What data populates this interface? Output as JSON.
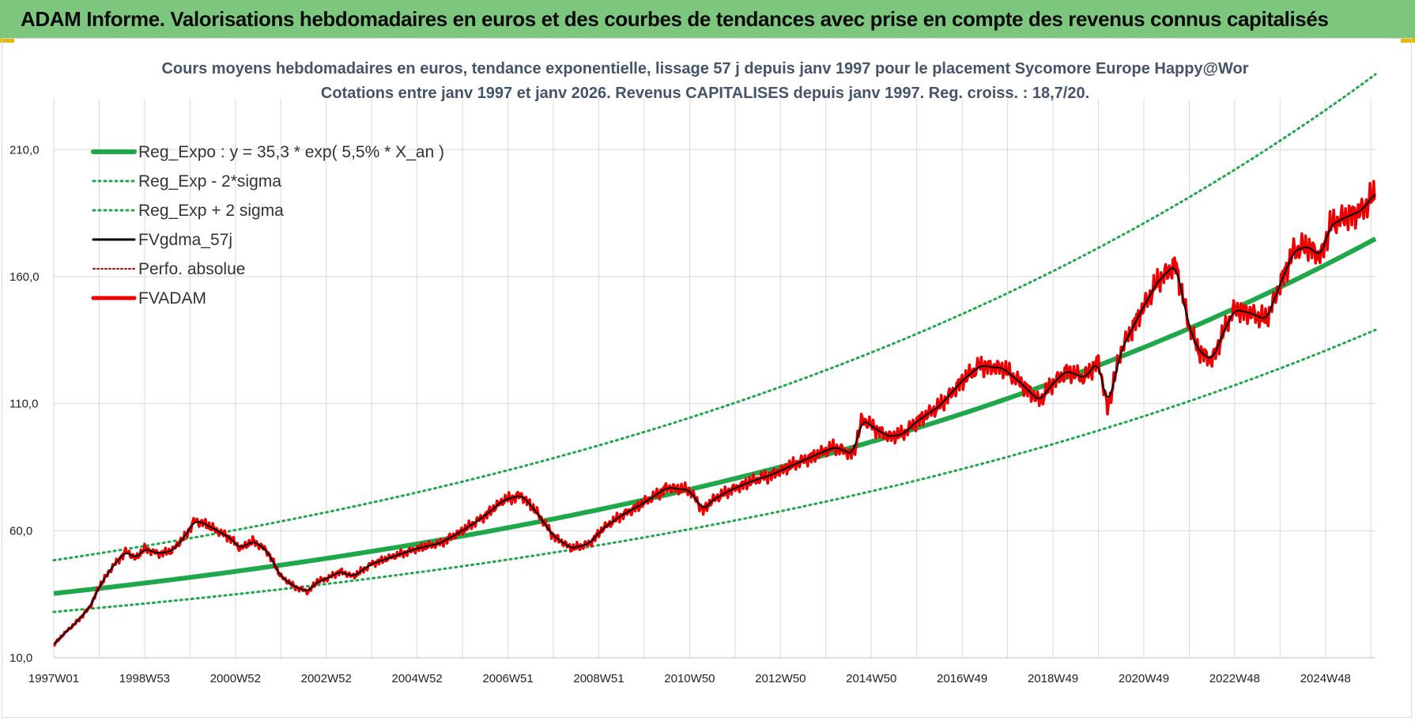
{
  "header": {
    "title": "ADAM Informe. Valorisations hebdomadaires en euros et des courbes de tendances avec prise en compte des revenus connus capitalisés"
  },
  "colors": {
    "header_bg": "#7dc67d",
    "reg_expo": "#1fa84a",
    "fvgdma": "#000000",
    "fvadam": "#ee0000",
    "perfo": "#cc0000",
    "grid": "#d9d9d9"
  },
  "chart_data": {
    "type": "line",
    "subtitle_line1": "Cours moyens hebdomadaires en euros, tendance exponentielle, lissage 57 j depuis janv 1997  pour le placement Sycomore Europe Happy@Wor",
    "subtitle_line2": "Cotations entre janv 1997 et janv 2026. Revenus CAPITALISES depuis janv 1997. Reg. croiss. : 18,7/20.",
    "ylim": [
      10,
      230
    ],
    "y_ticks": [
      "10,0",
      "60,0",
      "110,0",
      "160,0",
      "210,0"
    ],
    "y_tick_values": [
      10,
      60,
      110,
      160,
      210
    ],
    "x_range": [
      1997.0,
      2026.1
    ],
    "x_ticks": [
      "1997W01",
      "1998W53",
      "2000W52",
      "2002W52",
      "2004W52",
      "2006W51",
      "2008W51",
      "2010W50",
      "2012W50",
      "2014W50",
      "2016W49",
      "2018W49",
      "2020W49",
      "2022W48",
      "2024W48"
    ],
    "x_tick_positions": [
      1997.0,
      1999.0,
      2001.0,
      2003.0,
      2005.0,
      2007.0,
      2009.0,
      2011.0,
      2013.0,
      2015.0,
      2017.0,
      2019.0,
      2021.0,
      2023.0,
      2025.0
    ],
    "legend_position": "top-left",
    "series": [
      {
        "name": "Reg_Expo : y = 35,3 * exp( 5,5% *  X_an )",
        "style": "thick-solid",
        "a": 35.3,
        "rate": 0.055
      },
      {
        "name": "Reg_Exp - 2*sigma",
        "style": "dotted",
        "factor": 0.795
      },
      {
        "name": "Reg_Exp + 2 sigma",
        "style": "dotted",
        "factor": 1.37
      },
      {
        "name": "FVgdma_57j",
        "style": "solid"
      },
      {
        "name": "Perfo. absolue",
        "style": "dotted"
      },
      {
        "name": "FVADAM",
        "style": "thick-solid"
      }
    ],
    "fvadam_points": {
      "x": [
        1997.0,
        1997.2,
        1997.5,
        1997.8,
        1998.0,
        1998.3,
        1998.6,
        1998.8,
        1999.0,
        1999.3,
        1999.6,
        1999.9,
        2000.1,
        2000.3,
        2000.6,
        2000.9,
        2001.1,
        2001.4,
        2001.7,
        2002.0,
        2002.3,
        2002.6,
        2002.8,
        2003.0,
        2003.3,
        2003.6,
        2004.0,
        2004.5,
        2005.0,
        2005.5,
        2006.0,
        2006.5,
        2006.9,
        2007.3,
        2007.6,
        2008.0,
        2008.4,
        2008.8,
        2009.1,
        2009.5,
        2010.0,
        2010.5,
        2011.0,
        2011.3,
        2011.5,
        2011.9,
        2012.3,
        2012.8,
        2013.3,
        2013.8,
        2014.2,
        2014.6,
        2014.8,
        2015.1,
        2015.4,
        2015.7,
        2016.0,
        2016.5,
        2017.0,
        2017.4,
        2017.9,
        2018.3,
        2018.7,
        2019.0,
        2019.3,
        2019.7,
        2020.0,
        2020.2,
        2020.5,
        2020.9,
        2021.3,
        2021.7,
        2022.0,
        2022.2,
        2022.5,
        2022.8,
        2023.0,
        2023.3,
        2023.7,
        2024.0,
        2024.3,
        2024.6,
        2024.9,
        2025.1,
        2025.4,
        2025.8,
        2026.1
      ],
      "y": [
        15,
        19,
        24,
        30,
        38,
        46,
        52,
        49,
        53,
        51,
        52,
        58,
        64,
        63,
        60,
        57,
        53,
        56,
        52,
        42,
        38,
        36,
        40,
        41,
        44,
        42,
        47,
        50,
        53,
        55,
        60,
        66,
        72,
        74,
        68,
        58,
        53,
        55,
        61,
        66,
        71,
        77,
        76,
        68,
        72,
        76,
        79,
        82,
        86,
        90,
        93,
        90,
        104,
        100,
        97,
        98,
        103,
        109,
        119,
        125,
        124,
        118,
        111,
        118,
        123,
        120,
        127,
        108,
        131,
        145,
        158,
        165,
        140,
        131,
        127,
        140,
        147,
        146,
        143,
        157,
        170,
        172,
        168,
        180,
        183,
        186,
        193
      ]
    }
  }
}
